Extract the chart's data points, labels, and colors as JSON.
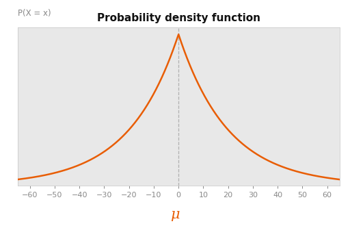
{
  "title": "Probability density function",
  "ylabel": "P(X = x)",
  "xlabel": "μ",
  "mu": 0,
  "b": 20,
  "x_min": -65,
  "x_max": 65,
  "x_ticks": [
    -60,
    -50,
    -40,
    -30,
    -20,
    -10,
    0,
    10,
    20,
    30,
    40,
    50,
    60
  ],
  "line_color": "#e85d04",
  "xlabel_color": "#e85d04",
  "dashed_color": "#b0b0b0",
  "plot_bg_color": "#e8e8e8",
  "fig_bg_color": "#ffffff",
  "title_fontsize": 11,
  "ylabel_fontsize": 8.5,
  "xlabel_fontsize": 15,
  "tick_fontsize": 8,
  "tick_color": "#888888"
}
